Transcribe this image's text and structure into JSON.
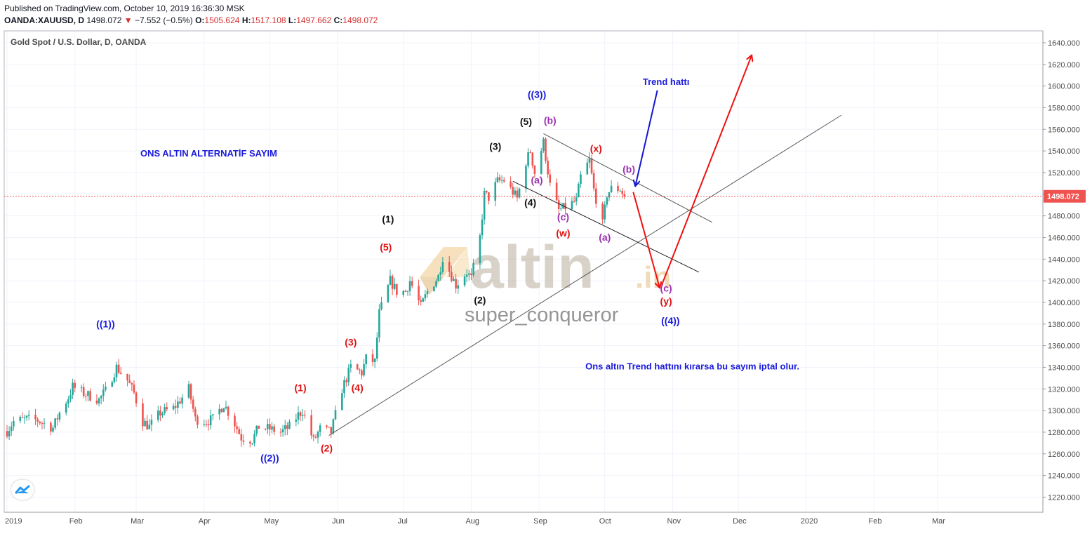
{
  "header": {
    "published": "Published on TradingView.com, October 10, 2019 16:36:30 MSK",
    "symbol": "OANDA:XAUUSD, D",
    "last": "1498.072",
    "change": "−7.552 (−0.5%)",
    "open_label": "O:",
    "open": "1505.624",
    "high_label": "H:",
    "high": "1517.108",
    "low_label": "L:",
    "low": "1497.662",
    "close_label": "C:",
    "close": "1498.072"
  },
  "instrument_title": "Gold Spot / U.S. Dollar, D, OANDA",
  "watermark": {
    "brand": "altin",
    "suffix": ".in",
    "author": "super_conqueror"
  },
  "colors": {
    "up": "#26a69a",
    "down": "#ef5350",
    "blue_label": "#1a1adc",
    "red_label": "#e01010",
    "purple_label": "#9b30b0",
    "arrow_blue": "#1515d0",
    "arrow_red": "#ee1111",
    "price_tag": "#ef5350"
  },
  "chart_data": {
    "type": "candlestick",
    "title": "ONS ALTIN  ALTERNATİF SAYIM",
    "y_axis": {
      "ticks": [
        1220,
        1240,
        1260,
        1280,
        1300,
        1320,
        1340,
        1360,
        1380,
        1400,
        1420,
        1440,
        1460,
        1480,
        1500,
        1520,
        1540,
        1560,
        1580,
        1600,
        1620,
        1640
      ],
      "range": [
        1206,
        1651
      ],
      "side": "right"
    },
    "x_axis": {
      "ticks": [
        "2019",
        "Feb",
        "Mar",
        "Apr",
        "May",
        "Jun",
        "Jul",
        "Aug",
        "Sep",
        "Oct",
        "Nov",
        "Dec",
        "2020",
        "Feb",
        "Mar"
      ]
    },
    "last_price": 1498.072,
    "last_price_label": "1498.072",
    "price_path": [
      [
        "2019-01-01",
        1281
      ],
      [
        "2019-01-04",
        1290
      ],
      [
        "2019-01-10",
        1292
      ],
      [
        "2019-01-15",
        1291
      ],
      [
        "2019-01-22",
        1284
      ],
      [
        "2019-01-25",
        1298
      ],
      [
        "2019-01-29",
        1312
      ],
      [
        "2019-01-31",
        1322
      ],
      [
        "2019-02-05",
        1316
      ],
      [
        "2019-02-12",
        1310
      ],
      [
        "2019-02-15",
        1318
      ],
      [
        "2019-02-20",
        1340
      ],
      [
        "2019-02-25",
        1328
      ],
      [
        "2019-02-28",
        1316
      ],
      [
        "2019-03-04",
        1290
      ],
      [
        "2019-03-07",
        1285
      ],
      [
        "2019-03-12",
        1298
      ],
      [
        "2019-03-18",
        1302
      ],
      [
        "2019-03-22",
        1312
      ],
      [
        "2019-03-25",
        1320
      ],
      [
        "2019-03-28",
        1292
      ],
      [
        "2019-04-02",
        1290
      ],
      [
        "2019-04-05",
        1292
      ],
      [
        "2019-04-10",
        1306
      ],
      [
        "2019-04-15",
        1288
      ],
      [
        "2019-04-18",
        1275
      ],
      [
        "2019-04-23",
        1273
      ],
      [
        "2019-04-26",
        1285
      ],
      [
        "2019-05-01",
        1283
      ],
      [
        "2019-05-06",
        1280
      ],
      [
        "2019-05-10",
        1285
      ],
      [
        "2019-05-14",
        1296
      ],
      [
        "2019-05-16",
        1300
      ],
      [
        "2019-05-21",
        1272
      ],
      [
        "2019-05-24",
        1283
      ],
      [
        "2019-05-29",
        1280
      ],
      [
        "2019-06-03",
        1320
      ],
      [
        "2019-06-07",
        1340
      ],
      [
        "2019-06-12",
        1335
      ],
      [
        "2019-06-14",
        1348
      ],
      [
        "2019-06-18",
        1345
      ],
      [
        "2019-06-20",
        1390
      ],
      [
        "2019-06-25",
        1420
      ],
      [
        "2019-06-28",
        1410
      ],
      [
        "2019-07-02",
        1410
      ],
      [
        "2019-07-04",
        1420
      ],
      [
        "2019-07-09",
        1396
      ],
      [
        "2019-07-12",
        1410
      ],
      [
        "2019-07-17",
        1424
      ],
      [
        "2019-07-19",
        1442
      ],
      [
        "2019-07-25",
        1416
      ],
      [
        "2019-07-30",
        1428
      ],
      [
        "2019-08-01",
        1422
      ],
      [
        "2019-08-05",
        1460
      ],
      [
        "2019-08-07",
        1500
      ],
      [
        "2019-08-09",
        1497
      ],
      [
        "2019-08-13",
        1512
      ],
      [
        "2019-08-16",
        1513
      ],
      [
        "2019-08-20",
        1502
      ],
      [
        "2019-08-22",
        1496
      ],
      [
        "2019-08-26",
        1530
      ],
      [
        "2019-08-28",
        1540
      ],
      [
        "2019-08-30",
        1520
      ],
      [
        "2019-09-03",
        1548
      ],
      [
        "2019-09-06",
        1508
      ],
      [
        "2019-09-10",
        1485
      ],
      [
        "2019-09-13",
        1488
      ],
      [
        "2019-09-18",
        1494
      ],
      [
        "2019-09-20",
        1516
      ],
      [
        "2019-09-24",
        1531
      ],
      [
        "2019-09-26",
        1504
      ],
      [
        "2019-09-30",
        1472
      ],
      [
        "2019-10-02",
        1500
      ],
      [
        "2019-10-04",
        1505
      ],
      [
        "2019-10-08",
        1505
      ],
      [
        "2019-10-10",
        1498
      ]
    ],
    "annotations": [
      {
        "text": "((1))",
        "date": "2019-02-15",
        "price": 1377,
        "color": "blue"
      },
      {
        "text": "((2))",
        "date": "2019-05-01",
        "price": 1253,
        "color": "blue"
      },
      {
        "text": "((3))",
        "date": "2019-08-31",
        "price": 1589,
        "color": "blue"
      },
      {
        "text": "((4))",
        "date": "2019-10-31",
        "price": 1380,
        "color": "blue"
      },
      {
        "text": "(1)",
        "date": "2019-05-15",
        "price": 1318,
        "color": "red"
      },
      {
        "text": "(2)",
        "date": "2019-05-27",
        "price": 1262,
        "color": "red"
      },
      {
        "text": "(3)",
        "date": "2019-06-07",
        "price": 1360,
        "color": "red"
      },
      {
        "text": "(4)",
        "date": "2019-06-10",
        "price": 1318,
        "color": "red"
      },
      {
        "text": "(5)",
        "date": "2019-06-23",
        "price": 1448,
        "color": "red"
      },
      {
        "text": "(w)",
        "date": "2019-09-12",
        "price": 1461,
        "color": "red"
      },
      {
        "text": "(x)",
        "date": "2019-09-27",
        "price": 1539,
        "color": "red"
      },
      {
        "text": "(y)",
        "date": "2019-10-29",
        "price": 1398,
        "color": "red"
      },
      {
        "text": "(1)",
        "date": "2019-06-24",
        "price": 1474,
        "color": "black"
      },
      {
        "text": "(2)",
        "date": "2019-08-05",
        "price": 1399,
        "color": "black"
      },
      {
        "text": "(3)",
        "date": "2019-08-12",
        "price": 1541,
        "color": "black"
      },
      {
        "text": "(4)",
        "date": "2019-08-28",
        "price": 1489,
        "color": "black"
      },
      {
        "text": "(5)",
        "date": "2019-08-26",
        "price": 1564,
        "color": "black"
      },
      {
        "text": "(a)",
        "date": "2019-08-31",
        "price": 1510,
        "color": "purple"
      },
      {
        "text": "(b)",
        "date": "2019-09-06",
        "price": 1565,
        "color": "purple"
      },
      {
        "text": "(c)",
        "date": "2019-09-12",
        "price": 1476,
        "color": "purple"
      },
      {
        "text": "(a)",
        "date": "2019-10-01",
        "price": 1457,
        "color": "purple"
      },
      {
        "text": "(b)",
        "date": "2019-10-12",
        "price": 1520,
        "color": "purple"
      },
      {
        "text": "(c)",
        "date": "2019-10-29",
        "price": 1410,
        "color": "purple"
      }
    ],
    "texts": [
      {
        "text": "Trend hattı",
        "date": "2019-10-29",
        "price": 1601,
        "color": "blue"
      },
      {
        "text": "Ons altın Trend hattını kırarsa bu sayım iptal olur.",
        "date": "2019-11-10",
        "price": 1338,
        "color": "blue"
      }
    ],
    "lines": [
      {
        "name": "trend-line",
        "from": [
          "2019-05-28",
          1277
        ],
        "to": [
          "2020-01-17",
          1573
        ],
        "color": "#555555"
      },
      {
        "name": "channel-upper",
        "from": [
          "2019-09-03",
          1556
        ],
        "to": [
          "2019-11-19",
          1474
        ],
        "color": "#555555"
      },
      {
        "name": "channel-lower",
        "from": [
          "2019-08-20",
          1512
        ],
        "to": [
          "2019-11-13",
          1428
        ],
        "color": "#222222"
      }
    ],
    "arrows": [
      {
        "name": "trend-pointer-arrow",
        "from": [
          "2019-10-25",
          1596
        ],
        "to": [
          "2019-10-15",
          1508
        ],
        "color": "blue"
      },
      {
        "name": "down-projection-arrow",
        "from": [
          "2019-10-14",
          1502
        ],
        "to": [
          "2019-10-26",
          1414
        ],
        "color": "red"
      },
      {
        "name": "up-projection-arrow",
        "from": [
          "2019-10-27",
          1416
        ],
        "to": [
          "2019-12-07",
          1628
        ],
        "color": "red"
      }
    ]
  }
}
